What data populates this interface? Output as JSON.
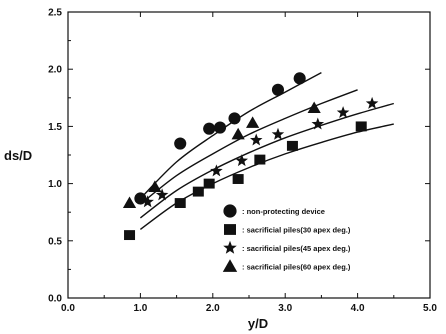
{
  "chart_data": {
    "type": "scatter",
    "title": "",
    "xlabel": "y/D",
    "ylabel": "ds/D",
    "xlim": [
      0.0,
      5.0
    ],
    "ylim": [
      0.0,
      2.5
    ],
    "x_ticks": [
      "0.0",
      "1.0",
      "2.0",
      "3.0",
      "4.0",
      "5.0"
    ],
    "y_ticks": [
      "0.0",
      "0.5",
      "1.0",
      "1.5",
      "2.0",
      "2.5"
    ],
    "grid": false,
    "legend_position": "lower-right",
    "series": [
      {
        "name": ": non-protecting device",
        "marker": "circle",
        "points": [
          [
            1.0,
            0.87
          ],
          [
            1.55,
            1.35
          ],
          [
            1.95,
            1.48
          ],
          [
            2.1,
            1.49
          ],
          [
            2.3,
            1.57
          ],
          [
            2.9,
            1.82
          ],
          [
            3.2,
            1.92
          ]
        ],
        "fit": [
          [
            1.0,
            0.87
          ],
          [
            1.5,
            1.19
          ],
          [
            2.0,
            1.42
          ],
          [
            2.5,
            1.63
          ],
          [
            3.0,
            1.8
          ],
          [
            3.5,
            1.97
          ]
        ]
      },
      {
        "name": ": sacrificial piles(30 apex deg.)",
        "marker": "square",
        "points": [
          [
            0.85,
            0.55
          ],
          [
            1.55,
            0.83
          ],
          [
            1.8,
            0.93
          ],
          [
            1.95,
            1.0
          ],
          [
            2.35,
            1.04
          ],
          [
            2.65,
            1.21
          ],
          [
            3.1,
            1.33
          ],
          [
            4.05,
            1.5
          ]
        ],
        "fit": [
          [
            1.0,
            0.6
          ],
          [
            1.5,
            0.83
          ],
          [
            2.0,
            1.0
          ],
          [
            2.5,
            1.14
          ],
          [
            3.0,
            1.26
          ],
          [
            3.5,
            1.36
          ],
          [
            4.0,
            1.45
          ],
          [
            4.5,
            1.52
          ]
        ]
      },
      {
        "name": ": sacrificial piles(45 apex deg.)",
        "marker": "star",
        "points": [
          [
            1.1,
            0.84
          ],
          [
            1.3,
            0.9
          ],
          [
            2.05,
            1.11
          ],
          [
            2.4,
            1.2
          ],
          [
            2.6,
            1.38
          ],
          [
            2.9,
            1.43
          ],
          [
            3.45,
            1.52
          ],
          [
            3.8,
            1.62
          ],
          [
            4.2,
            1.7
          ]
        ],
        "fit": [
          [
            1.0,
            0.7
          ],
          [
            1.5,
            0.94
          ],
          [
            2.0,
            1.12
          ],
          [
            2.5,
            1.27
          ],
          [
            3.0,
            1.4
          ],
          [
            3.5,
            1.51
          ],
          [
            4.0,
            1.61
          ],
          [
            4.5,
            1.7
          ]
        ]
      },
      {
        "name": ": sacrificial piles(60 apex deg.)",
        "marker": "triangle",
        "points": [
          [
            0.85,
            0.83
          ],
          [
            1.2,
            0.97
          ],
          [
            2.35,
            1.43
          ],
          [
            2.55,
            1.53
          ],
          [
            3.4,
            1.66
          ]
        ],
        "fit": [
          [
            1.0,
            0.82
          ],
          [
            1.5,
            1.07
          ],
          [
            2.0,
            1.26
          ],
          [
            2.5,
            1.43
          ],
          [
            3.0,
            1.57
          ],
          [
            3.5,
            1.7
          ],
          [
            4.0,
            1.82
          ]
        ]
      }
    ]
  }
}
